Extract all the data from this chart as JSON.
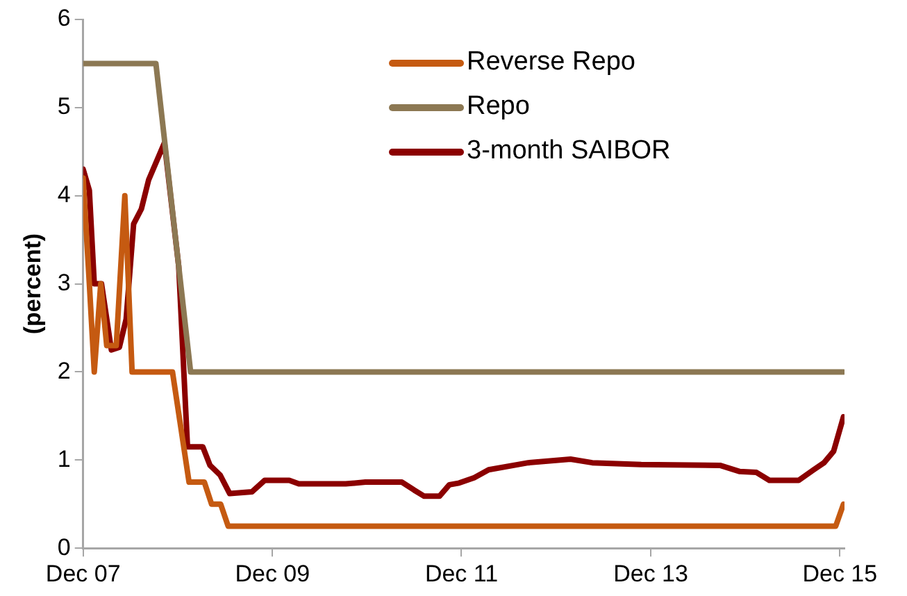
{
  "chart_data": {
    "type": "line",
    "ylabel": "(percent)",
    "xlim": [
      "2007-12-01",
      "2015-12-19"
    ],
    "ylim": [
      0,
      6
    ],
    "xticks": [
      {
        "value": "2007-12-01",
        "label": "Dec 07"
      },
      {
        "value": "2009-12-01",
        "label": "Dec 09"
      },
      {
        "value": "2011-12-01",
        "label": "Dec 11"
      },
      {
        "value": "2013-12-01",
        "label": "Dec 13"
      },
      {
        "value": "2015-12-01",
        "label": "Dec 15"
      }
    ],
    "yticks": [
      0,
      1,
      2,
      3,
      4,
      5,
      6
    ],
    "legend": "top right",
    "marker": "none",
    "line_style": "solid",
    "series": [
      {
        "name": "Reverse Repo",
        "color": "#c55a11",
        "x": [
          "2007-12-01",
          "2007-12-25",
          "2008-01-13",
          "2008-02-07",
          "2008-03-01",
          "2008-04-07",
          "2008-05-10",
          "2008-06-07",
          "2008-11-10",
          "2009-01-13",
          "2009-03-13",
          "2009-04-10",
          "2009-05-15",
          "2009-06-13",
          "2015-11-15",
          "2015-12-15"
        ],
        "values": [
          4.2,
          3,
          2,
          3,
          2.3,
          2.3,
          4,
          2,
          2,
          0.75,
          0.75,
          0.5,
          0.5,
          0.25,
          0.25,
          0.5
        ]
      },
      {
        "name": "Repo",
        "color": "#8c7853",
        "x": [
          "2007-12-01",
          "2008-09-07",
          "2009-01-19",
          "2015-12-15"
        ],
        "values": [
          5.5,
          5.5,
          2,
          2
        ]
      },
      {
        "name": "3-month SAIBOR",
        "color": "#8b0000",
        "x": [
          "2007-12-01",
          "2007-12-25",
          "2008-01-13",
          "2008-02-10",
          "2008-03-19",
          "2008-04-19",
          "2008-05-15",
          "2008-06-13",
          "2008-07-13",
          "2008-08-10",
          "2008-10-10",
          "2008-12-04",
          "2009-01-07",
          "2009-03-07",
          "2009-04-04",
          "2009-05-13",
          "2009-06-19",
          "2009-09-13",
          "2009-11-01",
          "2010-02-04",
          "2010-03-13",
          "2010-09-10",
          "2010-11-25",
          "2011-04-15",
          "2011-06-01",
          "2011-07-10",
          "2011-09-07",
          "2011-10-15",
          "2011-11-22",
          "2012-01-19",
          "2012-03-15",
          "2012-08-15",
          "2013-01-25",
          "2013-04-19",
          "2013-10-25",
          "2014-08-25",
          "2014-11-10",
          "2015-01-13",
          "2015-03-04",
          "2015-06-25",
          "2015-08-22",
          "2015-10-01",
          "2015-11-07",
          "2015-12-15"
        ],
        "values": [
          4.3,
          4.06,
          3,
          3,
          2.25,
          2.28,
          2.6,
          3.68,
          3.85,
          4.18,
          4.6,
          3.2,
          1.15,
          1.15,
          0.94,
          0.83,
          0.62,
          0.64,
          0.77,
          0.77,
          0.73,
          0.73,
          0.75,
          0.75,
          0.66,
          0.59,
          0.59,
          0.72,
          0.74,
          0.8,
          0.89,
          0.97,
          1.01,
          0.97,
          0.95,
          0.94,
          0.87,
          0.86,
          0.77,
          0.77,
          0.89,
          0.97,
          1.1,
          1.49
        ]
      }
    ]
  }
}
